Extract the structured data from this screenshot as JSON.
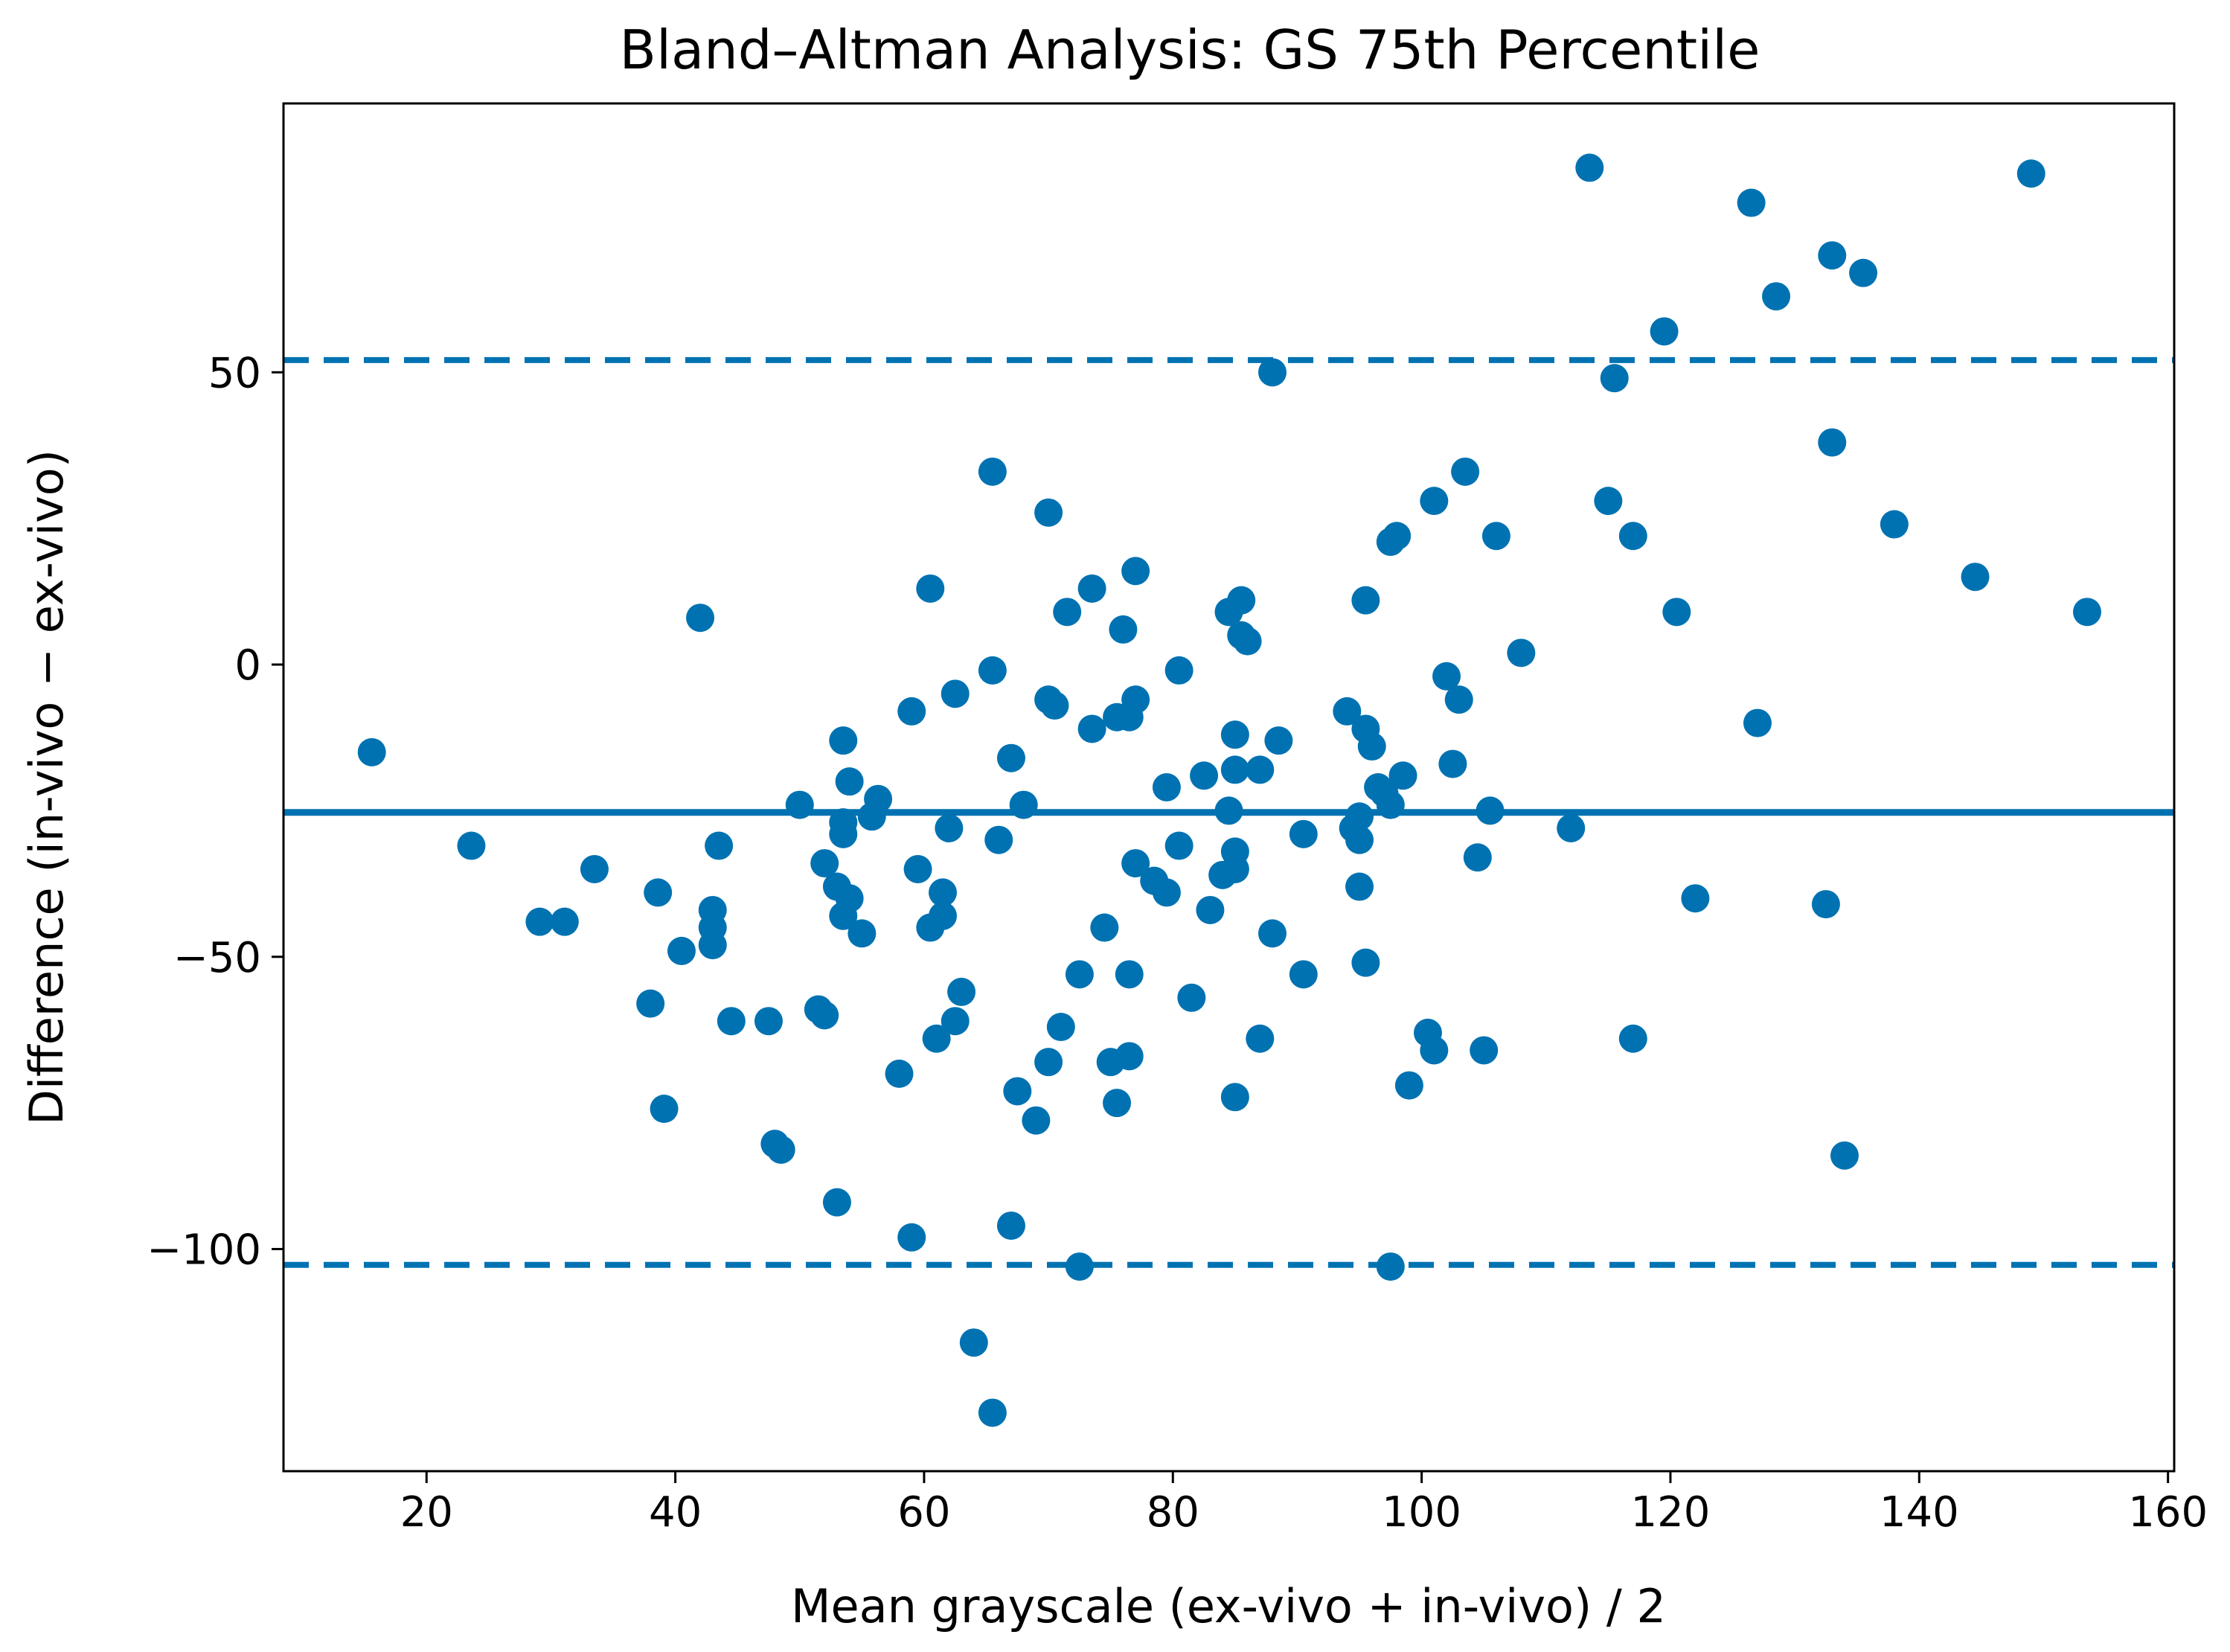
{
  "chart_data": {
    "type": "scatter",
    "title": "Bland–Altman Analysis: GS 75th Percentile",
    "xlabel": "Mean grayscale (ex-vivo + in-vivo) / 2",
    "ylabel": "Difference (in-vivo − ex-vivo)",
    "xlim": [
      8.5,
      160.5
    ],
    "ylim": [
      -138,
      96
    ],
    "xticks": [
      20,
      40,
      60,
      80,
      100,
      120,
      140,
      160
    ],
    "xtick_labels": [
      "20",
      "40",
      "60",
      "80",
      "100",
      "120",
      "140",
      "160"
    ],
    "yticks": [
      50,
      0,
      -50,
      -100
    ],
    "ytick_labels": [
      "50",
      "0",
      "−50",
      "−100"
    ],
    "grid": false,
    "color": "#0072b2",
    "mean_difference": -25.3,
    "upper_loa": 52.1,
    "lower_loa": -102.7,
    "points": [
      [
        15.6,
        -15
      ],
      [
        23.6,
        -31
      ],
      [
        29.1,
        -44
      ],
      [
        31.1,
        -44
      ],
      [
        33.5,
        -35
      ],
      [
        38.0,
        -58
      ],
      [
        38.6,
        -39
      ],
      [
        39.1,
        -76
      ],
      [
        40.5,
        -49
      ],
      [
        42.0,
        8
      ],
      [
        43.0,
        -42
      ],
      [
        43.0,
        -45
      ],
      [
        43.0,
        -48
      ],
      [
        43.5,
        -31
      ],
      [
        44.5,
        -61
      ],
      [
        47.5,
        -61
      ],
      [
        48.0,
        -82
      ],
      [
        48.5,
        -83
      ],
      [
        50.0,
        -24
      ],
      [
        51.5,
        -59
      ],
      [
        52.0,
        -60
      ],
      [
        52.0,
        -34
      ],
      [
        53.0,
        -38
      ],
      [
        53.0,
        -92
      ],
      [
        53.5,
        -13
      ],
      [
        53.5,
        -27
      ],
      [
        53.5,
        -29
      ],
      [
        53.5,
        -43
      ],
      [
        54.0,
        -20
      ],
      [
        54.0,
        -40
      ],
      [
        55.0,
        -46
      ],
      [
        55.8,
        -26
      ],
      [
        56.3,
        -23
      ],
      [
        58.0,
        -70
      ],
      [
        59.0,
        -8
      ],
      [
        59.0,
        -98
      ],
      [
        59.5,
        -35
      ],
      [
        60.5,
        13
      ],
      [
        60.5,
        -45
      ],
      [
        61.0,
        -64
      ],
      [
        61.5,
        -39
      ],
      [
        61.5,
        -43
      ],
      [
        62.0,
        -28
      ],
      [
        62.5,
        -5
      ],
      [
        62.5,
        -61
      ],
      [
        63.0,
        -56
      ],
      [
        64.0,
        -116
      ],
      [
        65.5,
        33
      ],
      [
        65.5,
        -1
      ],
      [
        65.5,
        -128
      ],
      [
        66.0,
        -30
      ],
      [
        67.0,
        -16
      ],
      [
        67.0,
        -96
      ],
      [
        67.5,
        -73
      ],
      [
        68.0,
        -24
      ],
      [
        69.0,
        -78
      ],
      [
        70.0,
        26
      ],
      [
        70.0,
        -6
      ],
      [
        70.0,
        -68
      ],
      [
        70.5,
        -7
      ],
      [
        71.0,
        -62
      ],
      [
        71.5,
        9
      ],
      [
        72.5,
        -53
      ],
      [
        72.5,
        -103
      ],
      [
        73.5,
        13
      ],
      [
        73.5,
        -11
      ],
      [
        74.5,
        -45
      ],
      [
        75.0,
        -68
      ],
      [
        75.5,
        -9
      ],
      [
        75.5,
        -75
      ],
      [
        76.0,
        6
      ],
      [
        76.5,
        -9
      ],
      [
        76.5,
        -53
      ],
      [
        76.5,
        -67
      ],
      [
        77.0,
        -6
      ],
      [
        77.0,
        16
      ],
      [
        77.0,
        -34
      ],
      [
        78.5,
        -37
      ],
      [
        79.5,
        -21
      ],
      [
        79.5,
        -39
      ],
      [
        80.5,
        -1
      ],
      [
        80.5,
        -31
      ],
      [
        81.5,
        -57
      ],
      [
        82.5,
        -19
      ],
      [
        83.0,
        -42
      ],
      [
        84.0,
        -36
      ],
      [
        84.5,
        9
      ],
      [
        84.5,
        -25
      ],
      [
        85.0,
        -12
      ],
      [
        85.0,
        -18
      ],
      [
        85.0,
        -32
      ],
      [
        85.0,
        -35
      ],
      [
        85.0,
        -74
      ],
      [
        85.5,
        11
      ],
      [
        85.5,
        5
      ],
      [
        86.0,
        4
      ],
      [
        87.0,
        -18
      ],
      [
        87.0,
        -64
      ],
      [
        88.0,
        50
      ],
      [
        88.0,
        -46
      ],
      [
        88.5,
        -13
      ],
      [
        90.5,
        -29
      ],
      [
        90.5,
        -53
      ],
      [
        94.0,
        -8
      ],
      [
        94.5,
        -28
      ],
      [
        95.0,
        -30
      ],
      [
        95.0,
        -26
      ],
      [
        95.0,
        -38
      ],
      [
        95.5,
        11
      ],
      [
        95.5,
        -11
      ],
      [
        95.5,
        -51
      ],
      [
        96.0,
        -14
      ],
      [
        96.5,
        -21
      ],
      [
        97.0,
        -22
      ],
      [
        97.5,
        21
      ],
      [
        97.5,
        -24
      ],
      [
        97.5,
        -103
      ],
      [
        98.0,
        22
      ],
      [
        98.5,
        -19
      ],
      [
        99.0,
        -72
      ],
      [
        100.5,
        -63
      ],
      [
        101.0,
        28
      ],
      [
        101.0,
        -66
      ],
      [
        102.0,
        -2
      ],
      [
        102.5,
        -17
      ],
      [
        103.0,
        -6
      ],
      [
        103.5,
        33
      ],
      [
        104.5,
        -33
      ],
      [
        105.0,
        -66
      ],
      [
        105.5,
        -25
      ],
      [
        106.0,
        22
      ],
      [
        108.0,
        2
      ],
      [
        112.0,
        -28
      ],
      [
        113.5,
        85
      ],
      [
        115.0,
        28
      ],
      [
        115.5,
        49
      ],
      [
        117.0,
        22
      ],
      [
        117.0,
        -64
      ],
      [
        119.5,
        57
      ],
      [
        120.5,
        9
      ],
      [
        122.0,
        -40
      ],
      [
        126.5,
        79
      ],
      [
        127.0,
        -10
      ],
      [
        128.5,
        63
      ],
      [
        132.5,
        -41
      ],
      [
        133.0,
        70
      ],
      [
        133.0,
        38
      ],
      [
        134.0,
        -84
      ],
      [
        135.5,
        67
      ],
      [
        138.0,
        24
      ],
      [
        144.5,
        15
      ],
      [
        149.0,
        84
      ],
      [
        153.5,
        9
      ]
    ]
  }
}
